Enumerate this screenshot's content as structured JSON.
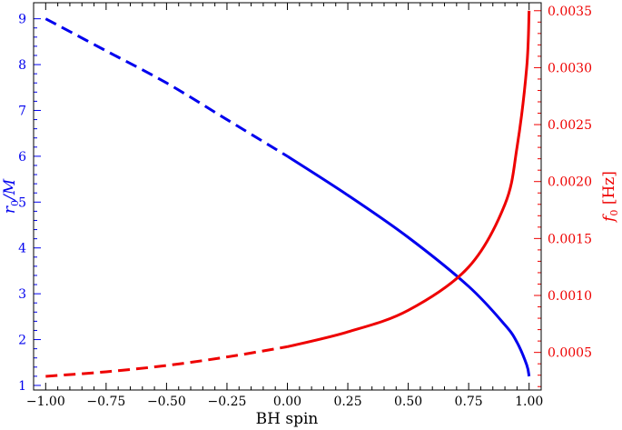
{
  "chart_data": {
    "type": "line",
    "xlabel": "BH spin",
    "ylabel_left": "r",
    "ylabel_left_sub": "0",
    "ylabel_left_tail": "/M",
    "ylabel_right": "f",
    "ylabel_right_sub": "0",
    "ylabel_right_tail": " [Hz]",
    "xlim": [
      -1.05,
      1.05
    ],
    "ylim_left": [
      0.9,
      9.35
    ],
    "ylim_right": [
      0.00017,
      0.00357
    ],
    "x_ticks": [
      -1.0,
      -0.75,
      -0.5,
      -0.25,
      0.0,
      0.25,
      0.5,
      0.75,
      1.0
    ],
    "x_tick_labels": [
      "−1.00",
      "−0.75",
      "−0.50",
      "−0.25",
      "0.00",
      "0.25",
      "0.50",
      "0.75",
      "1.00"
    ],
    "y_left_ticks": [
      1,
      2,
      3,
      4,
      5,
      6,
      7,
      8,
      9
    ],
    "y_left_tick_labels": [
      "1",
      "2",
      "3",
      "4",
      "5",
      "6",
      "7",
      "8",
      "9"
    ],
    "y_right_ticks": [
      0.0005,
      0.001,
      0.0015,
      0.002,
      0.0025,
      0.003,
      0.0035
    ],
    "y_right_tick_labels": [
      "0.0005",
      "0.0010",
      "0.0015",
      "0.0020",
      "0.0025",
      "0.0030",
      "0.0035"
    ],
    "series": [
      {
        "axis": "left",
        "color": "#0000ee",
        "dashed_for_negative_spin": true,
        "x": [
          -1.0,
          -0.75,
          -0.5,
          -0.25,
          0.0,
          0.25,
          0.5,
          0.75,
          0.9,
          0.95,
          0.99,
          1.0
        ],
        "y": [
          9.0,
          8.3,
          7.6,
          6.8,
          6.0,
          5.15,
          4.23,
          3.16,
          2.32,
          1.94,
          1.45,
          1.2
        ]
      },
      {
        "axis": "right",
        "color": "#ee0000",
        "dashed_for_negative_spin": true,
        "x": [
          -1.0,
          -0.75,
          -0.5,
          -0.25,
          0.0,
          0.25,
          0.5,
          0.75,
          0.9,
          0.95,
          0.99,
          1.0
        ],
        "y": [
          0.00029,
          0.00033,
          0.000385,
          0.00046,
          0.00055,
          0.00068,
          0.00087,
          0.00125,
          0.0018,
          0.0023,
          0.003,
          0.0035
        ]
      }
    ],
    "colors": {
      "left_axis": "#0000ee",
      "right_axis": "#ee0000",
      "frame": "#000000"
    }
  }
}
